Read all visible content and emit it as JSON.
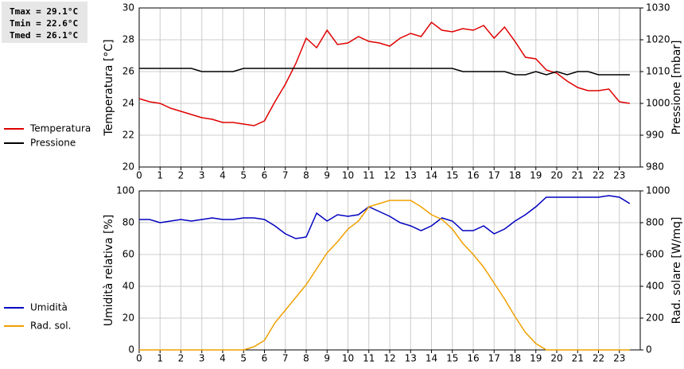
{
  "stats": [
    "Tmax = 29.1°C",
    "Tmin = 22.6°C",
    "Tmed = 26.1°C"
  ],
  "chart_data": [
    {
      "type": "line",
      "ylabel": "Temperatura [°C]",
      "y2label": "Pressione [mbar]",
      "x": [
        0,
        0.5,
        1,
        1.5,
        2,
        2.5,
        3,
        3.5,
        4,
        4.5,
        5,
        5.5,
        6,
        6.5,
        7,
        7.5,
        8,
        8.5,
        9,
        9.5,
        10,
        10.5,
        11,
        11.5,
        12,
        12.5,
        13,
        13.5,
        14,
        14.5,
        15,
        15.5,
        16,
        16.5,
        17,
        17.5,
        18,
        18.5,
        19,
        19.5,
        20,
        20.5,
        21,
        21.5,
        22,
        22.5,
        23,
        23.5
      ],
      "xlim": [
        0,
        24
      ],
      "xticks": [
        0,
        1,
        2,
        3,
        4,
        5,
        6,
        7,
        8,
        9,
        10,
        11,
        12,
        13,
        14,
        15,
        16,
        17,
        18,
        19,
        20,
        21,
        22,
        23
      ],
      "ylim": [
        20,
        30
      ],
      "yticks": [
        20,
        22,
        24,
        26,
        28,
        30
      ],
      "y2lim": [
        980,
        1030
      ],
      "y2ticks": [
        980,
        990,
        1000,
        1010,
        1020,
        1030
      ],
      "grid": true,
      "legend": "left",
      "series": [
        {
          "name": "Temperatura",
          "color": "#e00000",
          "values": [
            24.3,
            24.1,
            24.0,
            23.7,
            23.5,
            23.3,
            23.1,
            23.0,
            22.8,
            22.8,
            22.7,
            22.6,
            22.9,
            24.1,
            25.2,
            26.5,
            28.1,
            27.5,
            28.6,
            27.7,
            27.8,
            28.2,
            27.9,
            27.8,
            27.6,
            28.1,
            28.4,
            28.2,
            29.1,
            28.6,
            28.5,
            28.7,
            28.6,
            28.9,
            28.1,
            28.8,
            27.9,
            26.9,
            26.8,
            26.1,
            25.9,
            25.4,
            25.0,
            24.8,
            24.8,
            24.9,
            24.1,
            24.0
          ]
        },
        {
          "name": "Pressione",
          "color": "#000000",
          "axis": "y2",
          "values": [
            1011,
            1011,
            1011,
            1011,
            1011,
            1011,
            1010,
            1010,
            1010,
            1010,
            1011,
            1011,
            1011,
            1011,
            1011,
            1011,
            1011,
            1011,
            1011,
            1011,
            1011,
            1011,
            1011,
            1011,
            1011,
            1011,
            1011,
            1011,
            1011,
            1011,
            1011,
            1010,
            1010,
            1010,
            1010,
            1010,
            1009,
            1009,
            1010,
            1009,
            1010,
            1009,
            1010,
            1010,
            1009,
            1009,
            1009,
            1009
          ]
        }
      ]
    },
    {
      "type": "line",
      "ylabel": "Umidità relativa [%]",
      "y2label": "Rad. solare [W/mq]",
      "x": [
        0,
        0.5,
        1,
        1.5,
        2,
        2.5,
        3,
        3.5,
        4,
        4.5,
        5,
        5.5,
        6,
        6.5,
        7,
        7.5,
        8,
        8.5,
        9,
        9.5,
        10,
        10.5,
        11,
        11.5,
        12,
        12.5,
        13,
        13.5,
        14,
        14.5,
        15,
        15.5,
        16,
        16.5,
        17,
        17.5,
        18,
        18.5,
        19,
        19.5,
        20,
        20.5,
        21,
        21.5,
        22,
        22.5,
        23,
        23.5
      ],
      "xlim": [
        0,
        24
      ],
      "xticks": [
        0,
        1,
        2,
        3,
        4,
        5,
        6,
        7,
        8,
        9,
        10,
        11,
        12,
        13,
        14,
        15,
        16,
        17,
        18,
        19,
        20,
        21,
        22,
        23
      ],
      "ylim": [
        0,
        100
      ],
      "yticks": [
        0,
        20,
        40,
        60,
        80,
        100
      ],
      "y2lim": [
        0,
        1000
      ],
      "y2ticks": [
        0,
        200,
        400,
        600,
        800,
        1000
      ],
      "grid": true,
      "legend": "left",
      "series": [
        {
          "name": "Umidità",
          "color": "#0000c0",
          "values": [
            82,
            82,
            80,
            81,
            82,
            81,
            82,
            83,
            82,
            82,
            83,
            83,
            82,
            78,
            73,
            70,
            71,
            86,
            81,
            85,
            84,
            85,
            90,
            87,
            84,
            80,
            78,
            75,
            78,
            83,
            81,
            75,
            75,
            78,
            73,
            76,
            81,
            85,
            90,
            96,
            96,
            96,
            96,
            96,
            96,
            97,
            96,
            92
          ]
        },
        {
          "name": "Rad. sol.",
          "color": "#f0a000",
          "axis": "y2",
          "values": [
            0,
            0,
            0,
            0,
            0,
            0,
            0,
            0,
            0,
            0,
            0,
            20,
            60,
            170,
            250,
            330,
            410,
            510,
            610,
            680,
            760,
            810,
            900,
            920,
            940,
            940,
            940,
            900,
            850,
            820,
            760,
            670,
            600,
            520,
            420,
            320,
            210,
            110,
            40,
            0,
            0,
            0,
            0,
            0,
            0,
            0,
            0,
            0
          ]
        }
      ]
    }
  ]
}
